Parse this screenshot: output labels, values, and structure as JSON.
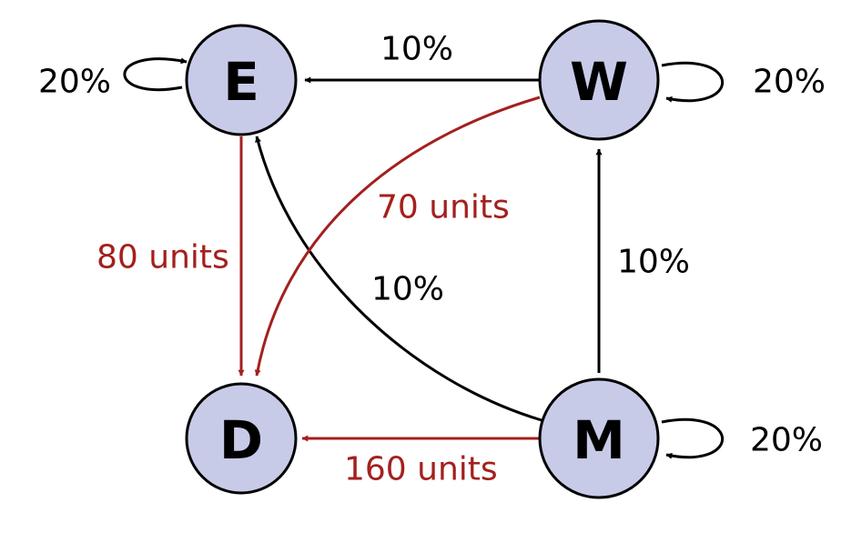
{
  "colors": {
    "node_fill": "#c8cbe8",
    "black": "#000000",
    "red": "#a3201e"
  },
  "nodes": {
    "E": "E",
    "W": "W",
    "D": "D",
    "M": "M"
  },
  "labels": {
    "e_self": "20%",
    "w_self": "20%",
    "m_self": "20%",
    "w_to_e": "10%",
    "m_to_w": "10%",
    "m_to_e": "10%",
    "e_to_d": "80 units",
    "w_to_d": "70 units",
    "m_to_d": "160 units"
  }
}
